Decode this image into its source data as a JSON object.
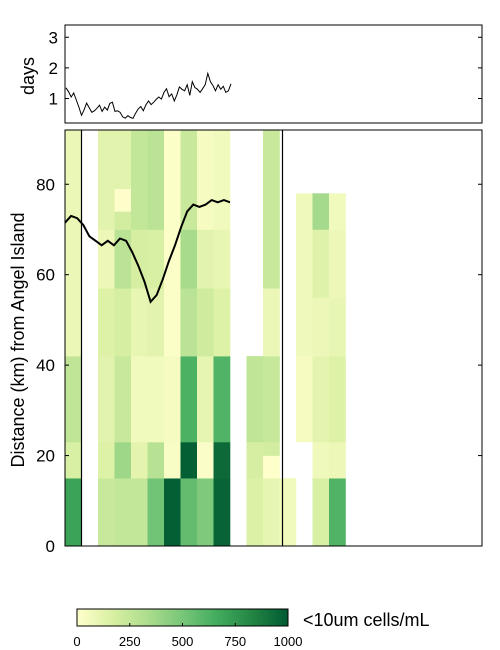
{
  "chart_data": [
    {
      "type": "line",
      "panel": "top",
      "title": "",
      "xlabel": "",
      "ylabel": "days",
      "ylim": [
        0.2,
        3.4
      ],
      "yticks": [
        1,
        2,
        3
      ],
      "ytick_labels": [
        "1",
        "2",
        "3"
      ],
      "series_color": "#000000",
      "series": [
        {
          "values": [
            1.35,
            1.22,
            1.05,
            1.18,
            0.95,
            0.72,
            0.45,
            0.62,
            0.85,
            0.7,
            0.55,
            0.6,
            0.68,
            0.78,
            0.58,
            0.72,
            0.62,
            0.84,
            0.88,
            0.58,
            0.6,
            0.55,
            0.4,
            0.36,
            0.44,
            0.38,
            0.35,
            0.52,
            0.66,
            0.74,
            0.6,
            0.79,
            0.92,
            0.8,
            0.88,
            0.97,
            1.05,
            0.98,
            1.2,
            1.32,
            1.06,
            1.15,
            0.92,
            1.12,
            1.38,
            1.3,
            1.25,
            1.45,
            1.1,
            1.55,
            1.36,
            1.3,
            1.2,
            1.32,
            1.45,
            1.82,
            1.55,
            1.42,
            1.25,
            1.45,
            1.3,
            1.4,
            1.2,
            1.25,
            1.48
          ]
        }
      ]
    },
    {
      "type": "heatmap",
      "panel": "bottom",
      "title": "",
      "xlabel": "",
      "ylabel": "Distance (km) from Angel Island",
      "ylim": [
        0,
        92
      ],
      "yticks": [
        0,
        20,
        40,
        60,
        80
      ],
      "ytick_labels": [
        "0",
        "20",
        "40",
        "60",
        "80"
      ],
      "colorbar": {
        "label": "<10um cells/mL",
        "range": [
          0,
          1000
        ],
        "ticks": [
          0,
          250,
          500,
          750,
          1000
        ],
        "tick_labels": [
          "0",
          "250",
          "500",
          "750",
          "1000"
        ],
        "colors": [
          "#ffffcc",
          "#d9f0a3",
          "#addd8e",
          "#78c679",
          "#41ab5d",
          "#238443",
          "#005a32"
        ]
      },
      "columns": [
        {
          "segments": [
            {
              "y": [
                0,
                15
              ],
              "value": 700
            },
            {
              "y": [
                15,
                23
              ],
              "value": 170
            },
            {
              "y": [
                23,
                42
              ],
              "value": 260
            },
            {
              "y": [
                42,
                92
              ],
              "value": 90
            }
          ]
        },
        {
          "segments": []
        },
        {
          "segments": [
            {
              "y": [
                0,
                15
              ],
              "value": 230
            },
            {
              "y": [
                15,
                23
              ],
              "value": 150
            },
            {
              "y": [
                23,
                42
              ],
              "value": 130
            },
            {
              "y": [
                42,
                57
              ],
              "value": 150
            },
            {
              "y": [
                57,
                70
              ],
              "value": 80
            },
            {
              "y": [
                70,
                92
              ],
              "value": 130
            }
          ]
        },
        {
          "segments": [
            {
              "y": [
                0,
                15
              ],
              "value": 250
            },
            {
              "y": [
                15,
                23
              ],
              "value": 380
            },
            {
              "y": [
                23,
                42
              ],
              "value": 230
            },
            {
              "y": [
                42,
                57
              ],
              "value": 180
            },
            {
              "y": [
                57,
                70
              ],
              "value": 280
            },
            {
              "y": [
                70,
                74
              ],
              "value": 190
            },
            {
              "y": [
                74,
                79
              ],
              "value": 10
            },
            {
              "y": [
                79,
                92
              ],
              "value": 130
            }
          ]
        },
        {
          "segments": [
            {
              "y": [
                0,
                15
              ],
              "value": 250
            },
            {
              "y": [
                15,
                23
              ],
              "value": 120
            },
            {
              "y": [
                23,
                42
              ],
              "value": 60
            },
            {
              "y": [
                42,
                57
              ],
              "value": 100
            },
            {
              "y": [
                57,
                70
              ],
              "value": 180
            },
            {
              "y": [
                70,
                92
              ],
              "value": 250
            }
          ]
        },
        {
          "segments": [
            {
              "y": [
                0,
                15
              ],
              "value": 520
            },
            {
              "y": [
                15,
                23
              ],
              "value": 290
            },
            {
              "y": [
                23,
                42
              ],
              "value": 60
            },
            {
              "y": [
                42,
                57
              ],
              "value": 130
            },
            {
              "y": [
                57,
                70
              ],
              "value": 170
            },
            {
              "y": [
                70,
                92
              ],
              "value": 280
            }
          ]
        },
        {
          "segments": [
            {
              "y": [
                0,
                15
              ],
              "value": 980
            },
            {
              "y": [
                15,
                23
              ],
              "value": 30
            },
            {
              "y": [
                23,
                42
              ],
              "value": 40
            },
            {
              "y": [
                42,
                92
              ],
              "value": 15
            }
          ]
        },
        {
          "segments": [
            {
              "y": [
                0,
                15
              ],
              "value": 560
            },
            {
              "y": [
                15,
                23
              ],
              "value": 980
            },
            {
              "y": [
                23,
                42
              ],
              "value": 630
            },
            {
              "y": [
                42,
                57
              ],
              "value": 280
            },
            {
              "y": [
                57,
                70
              ],
              "value": 350
            },
            {
              "y": [
                70,
                92
              ],
              "value": 230
            }
          ]
        },
        {
          "segments": [
            {
              "y": [
                0,
                15
              ],
              "value": 480
            },
            {
              "y": [
                15,
                23
              ],
              "value": 20
            },
            {
              "y": [
                23,
                42
              ],
              "value": 110
            },
            {
              "y": [
                42,
                57
              ],
              "value": 210
            },
            {
              "y": [
                57,
                70
              ],
              "value": 130
            },
            {
              "y": [
                70,
                92
              ],
              "value": 40
            }
          ]
        },
        {
          "segments": [
            {
              "y": [
                0,
                15
              ],
              "value": 960
            },
            {
              "y": [
                15,
                23
              ],
              "value": 940
            },
            {
              "y": [
                23,
                42
              ],
              "value": 620
            },
            {
              "y": [
                42,
                57
              ],
              "value": 150
            },
            {
              "y": [
                57,
                70
              ],
              "value": 100
            },
            {
              "y": [
                70,
                92
              ],
              "value": 60
            }
          ]
        },
        {
          "segments": []
        },
        {
          "segments": [
            {
              "y": [
                0,
                15
              ],
              "value": 160
            },
            {
              "y": [
                15,
                23
              ],
              "value": 180
            },
            {
              "y": [
                23,
                42
              ],
              "value": 260
            }
          ]
        },
        {
          "segments": [
            {
              "y": [
                0,
                15
              ],
              "value": 110
            },
            {
              "y": [
                15,
                20
              ],
              "value": 0
            },
            {
              "y": [
                20,
                23
              ],
              "value": 190
            },
            {
              "y": [
                23,
                42
              ],
              "value": 240
            },
            {
              "y": [
                42,
                57
              ],
              "value": 90
            },
            {
              "y": [
                57,
                92
              ],
              "value": 230
            }
          ]
        },
        {
          "segments": [
            {
              "y": [
                0,
                15
              ],
              "value": 60
            }
          ]
        },
        {
          "segments": [
            {
              "y": [
                23,
                42
              ],
              "value": 40
            },
            {
              "y": [
                42,
                78
              ],
              "value": 70
            }
          ]
        },
        {
          "segments": [
            {
              "y": [
                0,
                15
              ],
              "value": 170
            },
            {
              "y": [
                15,
                23
              ],
              "value": 70
            },
            {
              "y": [
                23,
                42
              ],
              "value": 120
            },
            {
              "y": [
                42,
                55
              ],
              "value": 80
            },
            {
              "y": [
                55,
                70
              ],
              "value": 140
            },
            {
              "y": [
                70,
                78
              ],
              "value": 360
            }
          ]
        },
        {
          "segments": [
            {
              "y": [
                0,
                15
              ],
              "value": 620
            },
            {
              "y": [
                15,
                23
              ],
              "value": 80
            },
            {
              "y": [
                23,
                42
              ],
              "value": 150
            },
            {
              "y": [
                42,
                55
              ],
              "value": 100
            },
            {
              "y": [
                55,
                70
              ],
              "value": 80
            },
            {
              "y": [
                70,
                78
              ],
              "value": 60
            }
          ]
        }
      ],
      "overlay_line": {
        "color": "#000000",
        "values": [
          71.5,
          73.0,
          72.5,
          71.0,
          68.5,
          67.5,
          66.5,
          67.5,
          66.5,
          68.0,
          67.5,
          65.0,
          62.0,
          58.5,
          54.0,
          55.5,
          59.0,
          63.0,
          66.5,
          70.5,
          74.0,
          75.5,
          75.0,
          75.5,
          76.5,
          76.0,
          76.5,
          76.0
        ]
      },
      "vertical_lines_km_axis_index": [
        1,
        13
      ]
    }
  ]
}
